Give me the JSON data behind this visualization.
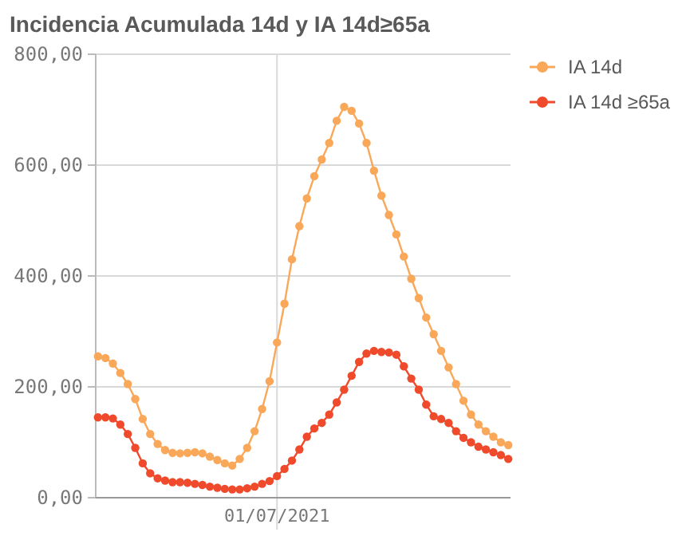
{
  "chart_data": {
    "type": "line",
    "title": "Incidencia Acumulada 14d y IA 14d≥65a",
    "marker": "circle",
    "grid": true,
    "legend": "top right",
    "categories": [
      null,
      null,
      null,
      null,
      null,
      null,
      null,
      null,
      null,
      null,
      null,
      null,
      null,
      null,
      null,
      null,
      null,
      null,
      null,
      null,
      null,
      null,
      null,
      null,
      "01/07/2021",
      null,
      null,
      null,
      null,
      null,
      null,
      null,
      null,
      null,
      null,
      null,
      null,
      null,
      null,
      null,
      null,
      null,
      null,
      null,
      null,
      null,
      null,
      null,
      null,
      null,
      null,
      null,
      null,
      null,
      null,
      null
    ],
    "ylim": [
      0,
      800
    ],
    "yticks": [
      {
        "value": 0,
        "label": "0,00"
      },
      {
        "value": 200,
        "label": "200,00"
      },
      {
        "value": 400,
        "label": "400,00"
      },
      {
        "value": 600,
        "label": "600,00"
      },
      {
        "value": 800,
        "label": "800,00"
      }
    ],
    "series": [
      {
        "name": "IA 14d",
        "color": "#f9a85a",
        "values": [
          255,
          252,
          242,
          225,
          205,
          178,
          142,
          115,
          97,
          86,
          81,
          80,
          81,
          82,
          80,
          74,
          68,
          62,
          58,
          70,
          90,
          120,
          160,
          210,
          280,
          350,
          430,
          490,
          540,
          580,
          610,
          640,
          680,
          705,
          698,
          675,
          640,
          590,
          545,
          510,
          475,
          435,
          395,
          360,
          325,
          295,
          265,
          235,
          205,
          175,
          150,
          132,
          120,
          110,
          100,
          95
        ]
      },
      {
        "name": "IA 14d ≥65a",
        "color": "#f04a2c",
        "values": [
          145,
          145,
          143,
          132,
          115,
          90,
          62,
          44,
          35,
          31,
          28,
          28,
          27,
          25,
          23,
          20,
          18,
          16,
          15,
          15,
          17,
          20,
          25,
          30,
          39,
          52,
          67,
          87,
          110,
          125,
          135,
          150,
          172,
          195,
          220,
          245,
          260,
          265,
          263,
          262,
          258,
          237,
          215,
          195,
          168,
          147,
          142,
          135,
          120,
          108,
          100,
          92,
          87,
          82,
          77,
          70
        ]
      }
    ]
  }
}
